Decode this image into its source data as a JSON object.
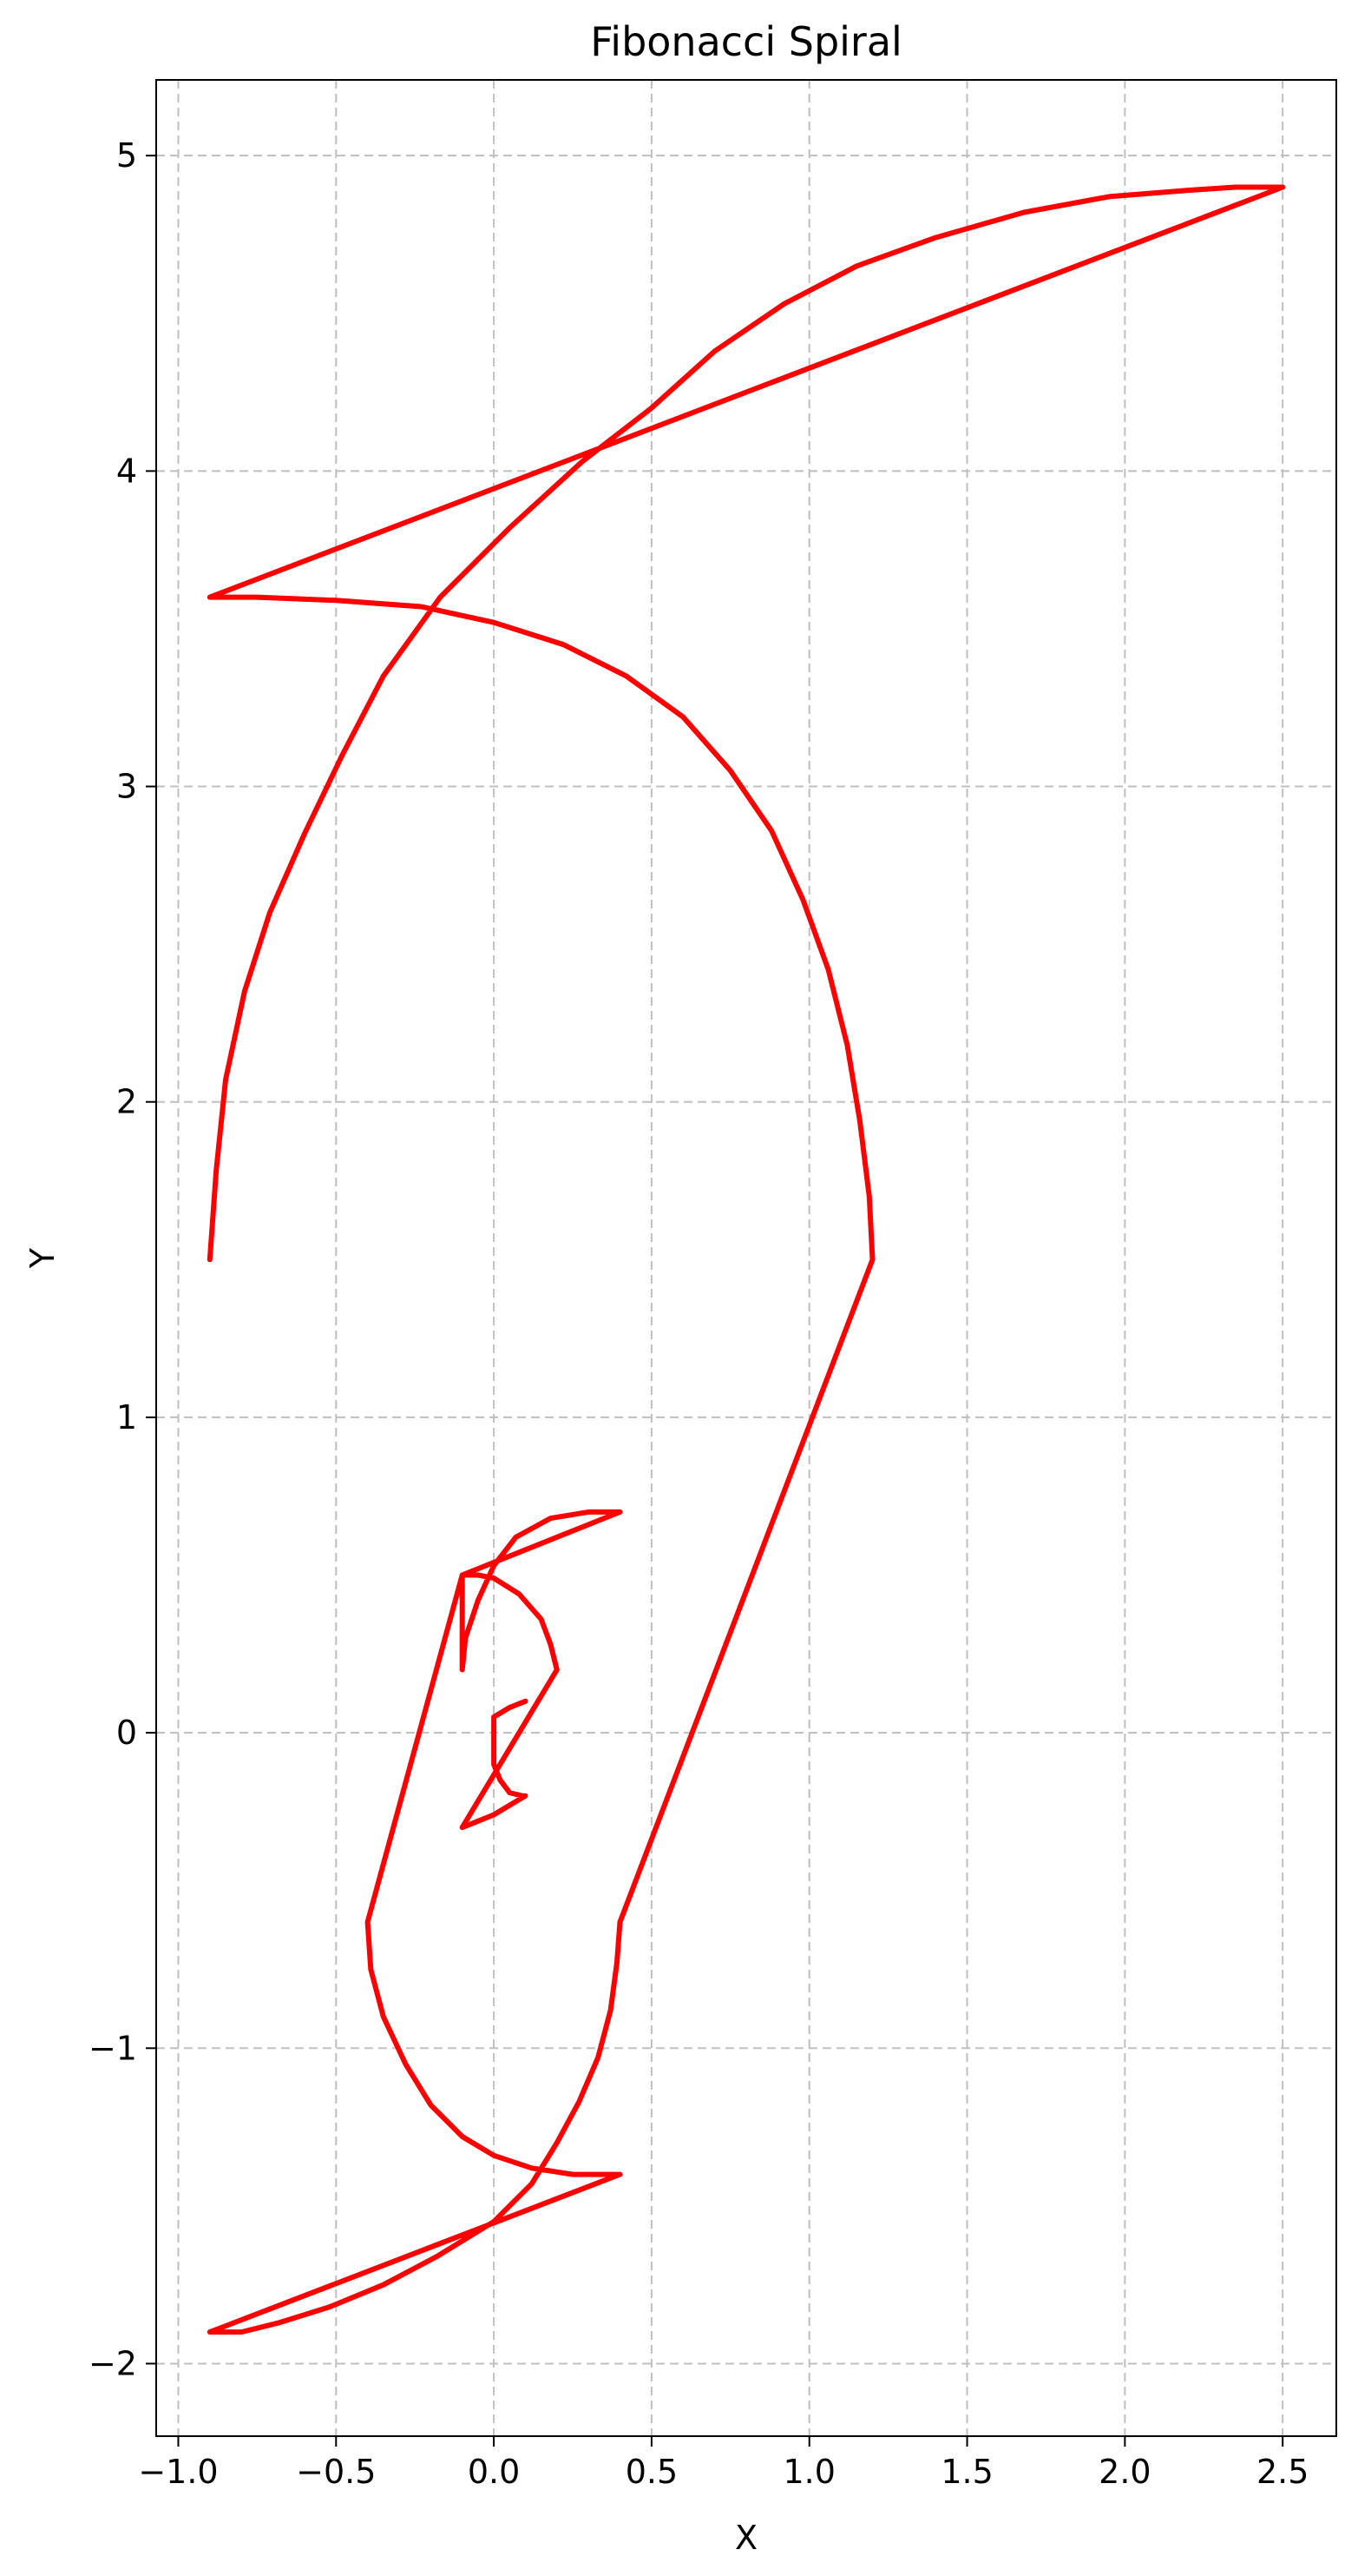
{
  "chart_data": {
    "type": "line",
    "title": "Fibonacci Spiral",
    "xlabel": "X",
    "ylabel": "Y",
    "xlim": [
      -1.07,
      2.67
    ],
    "ylim": [
      -2.23,
      5.24
    ],
    "xticks": [
      -1.0,
      -0.5,
      0.0,
      0.5,
      1.0,
      1.5,
      2.0,
      2.5
    ],
    "xtick_labels": [
      "−1.0",
      "−0.5",
      "0.0",
      "0.5",
      "1.0",
      "1.5",
      "2.0",
      "2.5"
    ],
    "yticks": [
      -2,
      -1,
      0,
      1,
      2,
      3,
      4,
      5
    ],
    "ytick_labels": [
      "−2",
      "−1",
      "0",
      "1",
      "2",
      "3",
      "4",
      "5"
    ],
    "grid": true,
    "grid_style": "dashed",
    "line_color": "#ff0000",
    "series": [
      {
        "x": [
          0.1,
          0.05,
          0.0,
          0.0,
          0.0,
          0.02,
          0.05,
          0.09,
          0.1,
          0.05,
          0.0,
          -0.05,
          -0.1,
          0.2,
          0.18,
          0.15,
          0.08,
          0.0,
          -0.05,
          -0.1,
          -0.1,
          -0.09,
          -0.05,
          0.0,
          0.07,
          0.18,
          0.3,
          0.4,
          -0.1,
          -0.4,
          -0.4,
          -0.39,
          -0.35,
          -0.28,
          -0.2,
          -0.1,
          0.0,
          0.12,
          0.25,
          0.4,
          -0.9,
          -0.8,
          -0.68,
          -0.52,
          -0.35,
          -0.18,
          0.0,
          0.12,
          0.2,
          0.27,
          0.33,
          0.37,
          0.39,
          0.4,
          1.2,
          1.19,
          1.16,
          1.12,
          1.06,
          0.98,
          0.88,
          0.75,
          0.6,
          0.42,
          0.22,
          0.0,
          -0.23,
          -0.5,
          -0.75,
          -0.9,
          2.5,
          2.35,
          2.2,
          1.95,
          1.68,
          1.4,
          1.15,
          0.92,
          0.7,
          0.5,
          0.28,
          0.05,
          -0.17,
          -0.35,
          -0.48,
          -0.6,
          -0.71,
          -0.79,
          -0.85,
          -0.88,
          -0.9
        ],
        "y": [
          0.1,
          0.08,
          0.05,
          0.0,
          -0.1,
          -0.15,
          -0.19,
          -0.2,
          -0.2,
          -0.23,
          -0.26,
          -0.28,
          -0.3,
          0.2,
          0.28,
          0.36,
          0.44,
          0.49,
          0.5,
          0.5,
          0.2,
          0.3,
          0.42,
          0.53,
          0.62,
          0.68,
          0.7,
          0.7,
          0.5,
          -0.6,
          -0.6,
          -0.75,
          -0.9,
          -1.05,
          -1.18,
          -1.28,
          -1.34,
          -1.38,
          -1.4,
          -1.4,
          -1.9,
          -1.9,
          -1.87,
          -1.82,
          -1.75,
          -1.66,
          -1.55,
          -1.43,
          -1.3,
          -1.17,
          -1.03,
          -0.88,
          -0.73,
          -0.6,
          1.5,
          1.7,
          1.94,
          2.18,
          2.42,
          2.64,
          2.86,
          3.05,
          3.22,
          3.35,
          3.45,
          3.52,
          3.57,
          3.59,
          3.6,
          3.6,
          4.9,
          4.9,
          4.89,
          4.87,
          4.82,
          4.74,
          4.65,
          4.53,
          4.38,
          4.2,
          4.03,
          3.82,
          3.6,
          3.35,
          3.1,
          2.85,
          2.6,
          2.35,
          2.07,
          1.78,
          1.5
        ]
      }
    ]
  }
}
